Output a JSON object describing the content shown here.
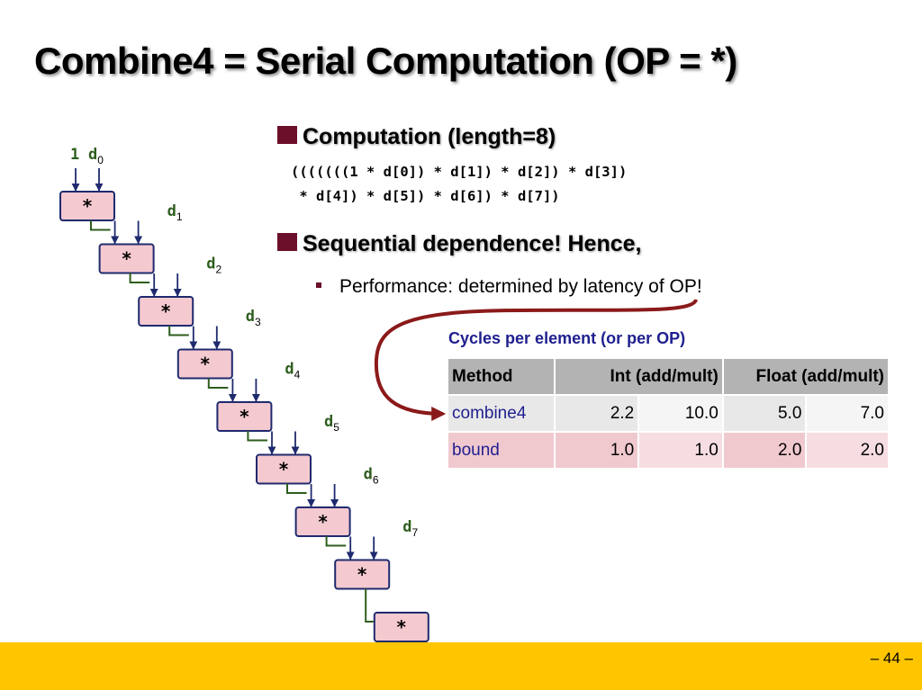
{
  "title": "Combine4 = Serial Computation (OP = *)",
  "bullet1": "Computation (length=8)",
  "code_line1": "(((((((1 * d[0]) * d[1]) * d[2]) * d[3])",
  "code_line2": " * d[4]) * d[5]) * d[6]) * d[7])",
  "bullet2": "Sequential dependence! Hence,",
  "sub_bullet": "Performance: determined by latency of OP!",
  "diagram": {
    "initial_input": "1",
    "operator": "*",
    "inputs": [
      {
        "base": "d",
        "sub": "0"
      },
      {
        "base": "d",
        "sub": "1"
      },
      {
        "base": "d",
        "sub": "2"
      },
      {
        "base": "d",
        "sub": "3"
      },
      {
        "base": "d",
        "sub": "4"
      },
      {
        "base": "d",
        "sub": "5"
      },
      {
        "base": "d",
        "sub": "6"
      },
      {
        "base": "d",
        "sub": "7"
      }
    ]
  },
  "table": {
    "caption": "Cycles per element (or per OP)",
    "headers": [
      "Method",
      "Int (add/mult)",
      "Float (add/mult)"
    ],
    "rows": [
      {
        "method": "combine4",
        "values": [
          "2.2",
          "10.0",
          "5.0",
          "7.0"
        ]
      },
      {
        "method": "bound",
        "values": [
          "1.0",
          "1.0",
          "2.0",
          "2.0"
        ]
      }
    ]
  },
  "page_number": "– 44 –",
  "colors": {
    "accent": "#6b0f2a",
    "node_fill": "#f4c9d0",
    "node_border": "#1f2a6e",
    "code_green": "#2e5e1e",
    "caption_blue": "#1f1f8f",
    "footer": "#ffc600"
  }
}
